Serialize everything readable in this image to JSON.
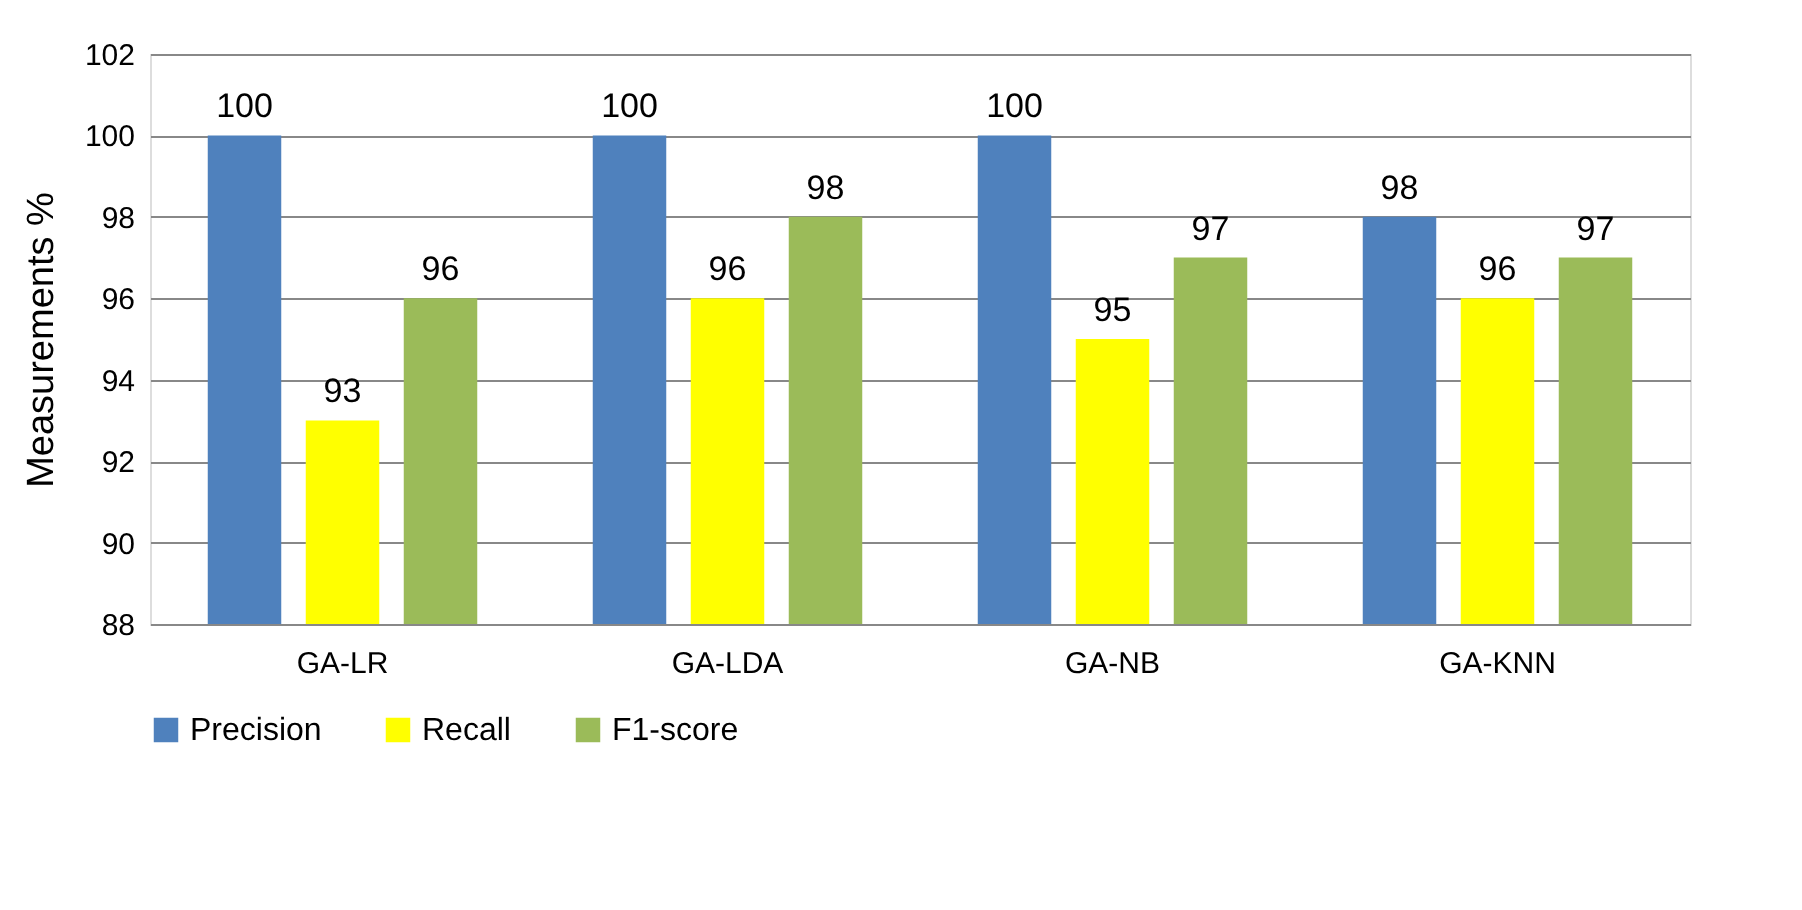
{
  "chart_data": {
    "type": "bar",
    "ylabel": "Measurements %",
    "categories": [
      "GA-LR",
      "GA-LDA",
      "GA-NB",
      "GA-KNN"
    ],
    "series": [
      {
        "name": "Precision",
        "color": "#4f81bd",
        "values": [
          100,
          100,
          100,
          98
        ]
      },
      {
        "name": "Recall",
        "color": "#ffff00",
        "values": [
          93,
          96,
          95,
          96
        ]
      },
      {
        "name": "F1-score",
        "color": "#9bbb59",
        "values": [
          96,
          98,
          97,
          97
        ]
      }
    ],
    "ylim": [
      88,
      102
    ],
    "yticks": [
      88,
      90,
      92,
      94,
      96,
      98,
      100,
      102
    ],
    "grid": "y",
    "legend": "bottom",
    "data_labels": true
  }
}
